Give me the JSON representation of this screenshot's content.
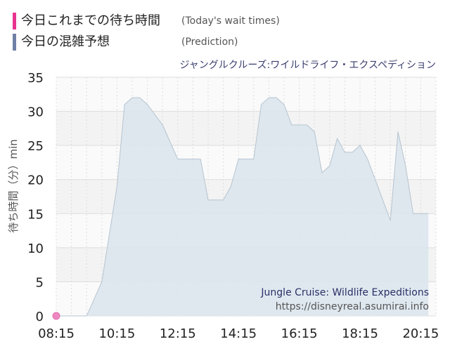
{
  "legend": {
    "today_ja": "今日これまでの待ち時間",
    "today_en": "(Today's wait times)",
    "prediction_ja": "今日の混雑予想",
    "prediction_en": "(Prediction)"
  },
  "colors": {
    "today": "#e8338f",
    "prediction": "#6f7fa6",
    "area_fill": "#dbe5ed",
    "area_line": "#b6c4d0",
    "band": "#f3f3f3"
  },
  "watermark": {
    "name_en": "Jungle Cruise: Wildlife Expeditions",
    "url": "https://disneyreal.asumirai.info"
  },
  "chart_data": {
    "type": "area",
    "title": "ジャングルクルーズ:ワイルドライフ・エクスペディション",
    "ylabel": "待ち時間（分）min",
    "ylim": [
      0,
      35
    ],
    "yticks": [
      0,
      5,
      10,
      15,
      20,
      25,
      30,
      35
    ],
    "xticks": [
      "08:15",
      "10:15",
      "12:15",
      "14:15",
      "16:15",
      "18:15",
      "20:15"
    ],
    "grid": true,
    "series": [
      {
        "name": "今日の混雑予想",
        "x": [
          "08:15",
          "08:45",
          "09:15",
          "09:45",
          "10:15",
          "10:30",
          "10:45",
          "11:00",
          "11:15",
          "11:45",
          "12:15",
          "12:45",
          "13:00",
          "13:15",
          "13:30",
          "13:45",
          "14:00",
          "14:15",
          "14:30",
          "14:45",
          "15:00",
          "15:15",
          "15:30",
          "15:45",
          "16:00",
          "16:15",
          "16:30",
          "16:45",
          "17:00",
          "17:15",
          "17:30",
          "17:45",
          "18:00",
          "18:15",
          "18:30",
          "18:45",
          "19:00",
          "19:15",
          "19:30",
          "19:45",
          "20:00",
          "20:15",
          "20:30"
        ],
        "values": [
          0,
          0,
          0,
          5,
          19,
          31,
          32,
          32,
          31,
          28,
          23,
          23,
          23,
          17,
          17,
          17,
          19,
          23,
          23,
          23,
          31,
          32,
          32,
          31,
          28,
          28,
          28,
          27,
          21,
          22,
          26,
          24,
          24,
          25,
          23,
          20,
          17,
          14,
          27,
          22,
          15,
          15,
          15
        ]
      },
      {
        "name": "今日これまでの待ち時間",
        "x": [
          "08:15"
        ],
        "values": [
          0
        ]
      }
    ]
  }
}
